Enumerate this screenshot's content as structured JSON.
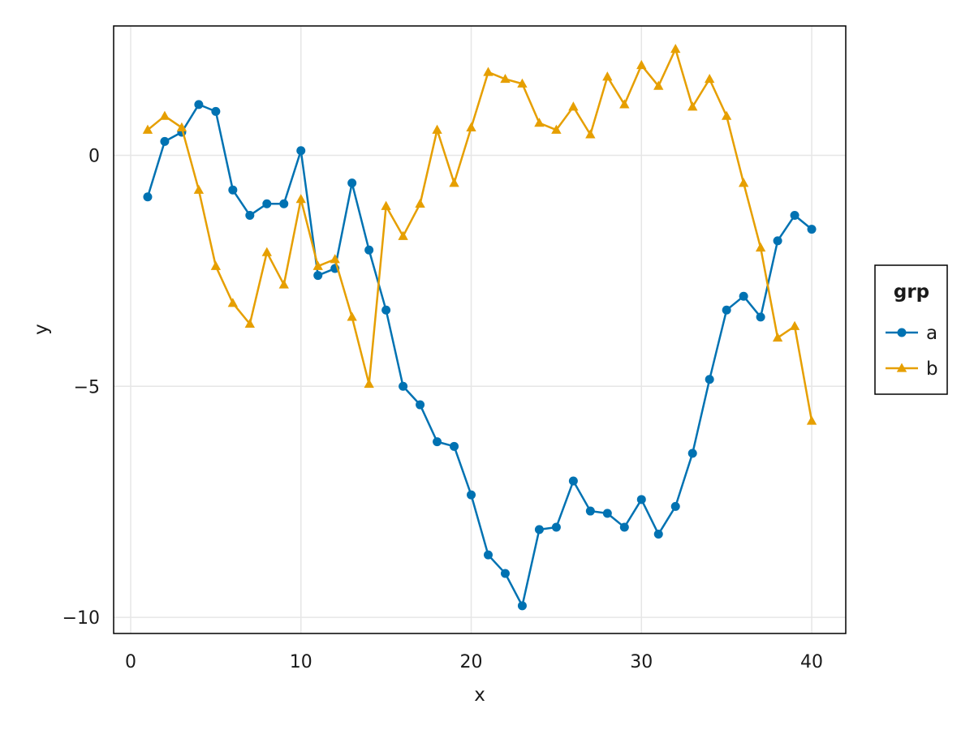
{
  "chart_data": {
    "type": "line",
    "title": "",
    "xlabel": "x",
    "ylabel": "y",
    "xlim": [
      -1,
      42
    ],
    "ylim": [
      -10.35,
      2.8
    ],
    "x_ticks": [
      0,
      10,
      20,
      30,
      40
    ],
    "y_ticks": [
      0,
      -5,
      -10
    ],
    "x_tick_labels": [
      "0",
      "10",
      "20",
      "30",
      "40"
    ],
    "y_tick_labels": [
      "0",
      "−5",
      "−10"
    ],
    "grid": true,
    "legend": {
      "title": "grp",
      "placement": "right",
      "entries": [
        "a",
        "b"
      ]
    },
    "x": [
      1,
      2,
      3,
      4,
      5,
      6,
      7,
      8,
      9,
      10,
      11,
      12,
      13,
      14,
      15,
      16,
      17,
      18,
      19,
      20,
      21,
      22,
      23,
      24,
      25,
      26,
      27,
      28,
      29,
      30,
      31,
      32,
      33,
      34,
      35,
      36,
      37,
      38,
      39,
      40
    ],
    "series": [
      {
        "name": "a",
        "color": "#0072b2",
        "marker": "circle",
        "values": [
          -0.9,
          0.3,
          0.5,
          1.1,
          0.95,
          -0.75,
          -1.3,
          -1.05,
          -1.05,
          0.1,
          -2.6,
          -2.45,
          -0.6,
          -2.05,
          -3.35,
          -5.0,
          -5.4,
          -6.2,
          -6.3,
          -7.35,
          -8.65,
          -9.05,
          -9.75,
          -8.1,
          -8.05,
          -7.05,
          -7.7,
          -7.75,
          -8.05,
          -7.45,
          -8.2,
          -7.6,
          -6.45,
          -4.85,
          -3.35,
          -3.05,
          -3.5,
          -1.85,
          -1.3,
          -1.6
        ]
      },
      {
        "name": "b",
        "color": "#e69f00",
        "marker": "triangle",
        "values": [
          0.55,
          0.85,
          0.6,
          -0.75,
          -2.4,
          -3.2,
          -3.65,
          -2.1,
          -2.8,
          -0.95,
          -2.4,
          -2.25,
          -3.5,
          -4.95,
          -1.1,
          -1.75,
          -1.05,
          0.55,
          -0.6,
          0.6,
          1.8,
          1.65,
          1.55,
          0.7,
          0.55,
          1.05,
          0.45,
          1.7,
          1.1,
          1.95,
          1.5,
          2.3,
          1.05,
          1.65,
          0.85,
          -0.6,
          -2.0,
          -3.95,
          -3.7,
          -5.75
        ]
      }
    ],
    "colors": {
      "frame": "#000000",
      "grid": "#e6e6e6",
      "text": "#1a1a1a"
    }
  }
}
